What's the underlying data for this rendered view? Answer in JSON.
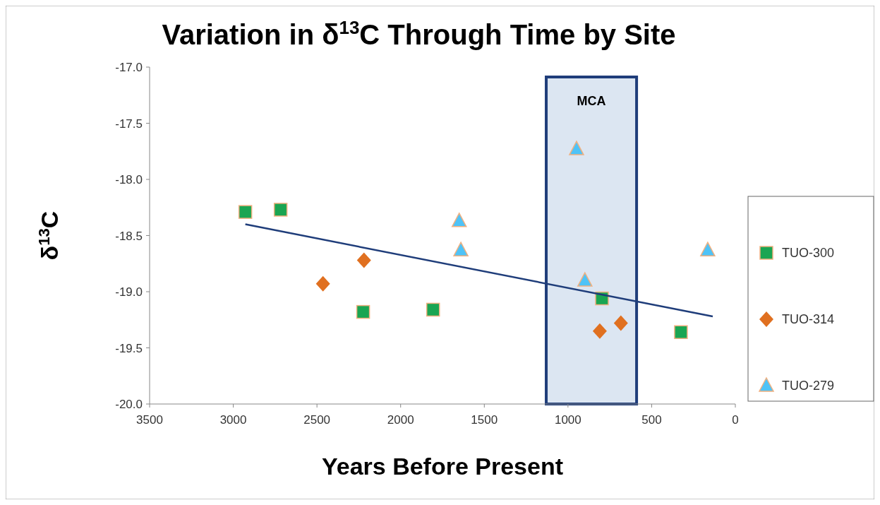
{
  "chart_data": {
    "type": "scatter",
    "title": "Variation in δ$^{13}$C Through Time by Site",
    "xlabel": "Years Before Present",
    "ylabel": "δ$^{13}$C",
    "xlim": [
      3500,
      0
    ],
    "xticks": [
      3500,
      3000,
      2500,
      2000,
      1500,
      1000,
      500,
      0
    ],
    "ylim": [
      -20,
      -17
    ],
    "yticks": [
      {
        "value": -20,
        "label": "-20.0"
      },
      {
        "value": -19.5,
        "label": "-19.5"
      },
      {
        "value": -19,
        "label": "-19.0"
      },
      {
        "value": -18.5,
        "label": "-18.5"
      },
      {
        "value": -18,
        "label": "-18.0"
      },
      {
        "value": -17.5,
        "label": "-17.5"
      },
      {
        "value": -17,
        "label": "-17.0"
      }
    ],
    "grid": false,
    "legend": "right",
    "series": [
      {
        "name": "TUO-300",
        "color": "#1aa552",
        "marker": "square",
        "x": [
          2928,
          2717,
          2224,
          1806,
          797,
          325
        ],
        "values": [
          -18.29,
          -18.27,
          -19.18,
          -19.16,
          -19.06,
          -19.36
        ]
      },
      {
        "name": "TUO-314",
        "color": "#e07020",
        "marker": "diamond",
        "x": [
          2464,
          2219,
          810,
          684
        ],
        "values": [
          -18.93,
          -18.72,
          -19.35,
          -19.28
        ]
      },
      {
        "name": "TUO-279",
        "color": "#4fc3f7",
        "marker": "triangle",
        "x": [
          1650,
          1640,
          949,
          899,
          165
        ],
        "values": [
          -18.37,
          -18.63,
          -17.73,
          -18.9,
          -18.63
        ]
      },
      {
        "type": "line",
        "color": "#1f3d7a",
        "x": [
          2928,
          135
        ],
        "values": [
          -18.4,
          -19.22
        ]
      }
    ],
    "bands": [
      {
        "axis": "x",
        "from": 1130,
        "to": 590,
        "label": "MCA",
        "color": "#dce6f2"
      }
    ]
  }
}
